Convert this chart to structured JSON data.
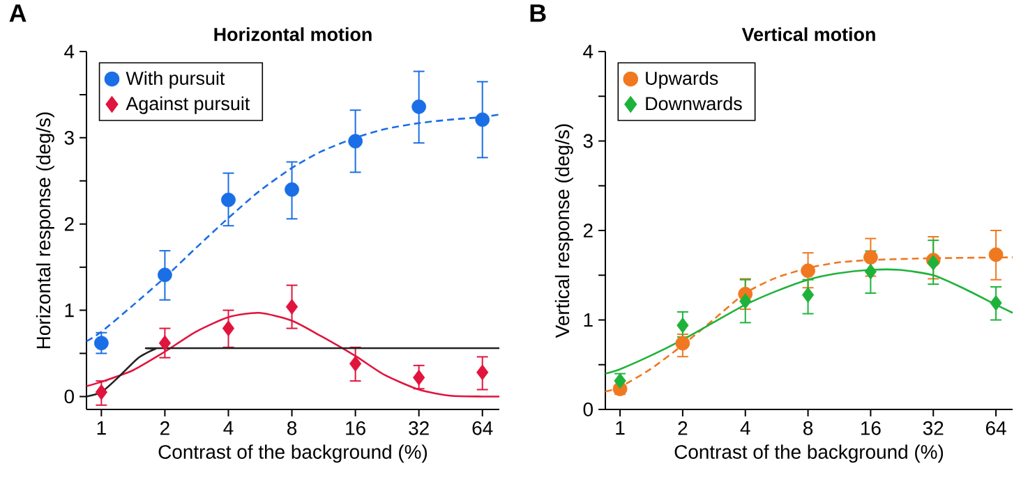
{
  "chart_data": [
    {
      "type": "scatter",
      "title": "Horizontal motion",
      "xlabel": "Contrast of the background (%)",
      "ylabel": "Horizontal response (deg/s)",
      "annotations": [
        "A"
      ],
      "log": "x",
      "xlim": [
        0.85,
        77
      ],
      "xticks": [
        1,
        2,
        4,
        8,
        16,
        32,
        64
      ],
      "ylim": [
        -0.15,
        4
      ],
      "yticks": [
        0,
        {
          "value": 0.5,
          "label": null
        },
        1,
        {
          "value": 1.5,
          "label": null
        },
        2,
        {
          "value": 2.5,
          "label": null
        },
        3,
        {
          "value": 3.5,
          "label": null
        },
        4
      ],
      "grid": false,
      "legend": "top left",
      "series": [
        {
          "name": "With pursuit",
          "type": "scatter",
          "marker": "circle",
          "color": "#1a6ee6",
          "x": [
            1,
            2,
            4,
            8,
            16,
            32,
            64
          ],
          "values": [
            0.62,
            1.41,
            2.28,
            2.4,
            2.96,
            3.36,
            3.21
          ],
          "errors": [
            [
              0.5,
              0.74
            ],
            [
              1.12,
              1.69
            ],
            [
              1.98,
              2.59
            ],
            [
              2.06,
              2.72
            ],
            [
              2.6,
              3.32
            ],
            [
              2.94,
              3.77
            ],
            [
              2.77,
              3.65
            ]
          ]
        },
        {
          "name": "Against pursuit",
          "type": "scatter",
          "marker": "diamond",
          "color": "#e0143c",
          "x": [
            1,
            2,
            4,
            8,
            16,
            32,
            64
          ],
          "values": [
            0.05,
            0.62,
            0.79,
            1.04,
            0.38,
            0.22,
            0.28
          ],
          "errors": [
            [
              -0.1,
              0.18
            ],
            [
              0.45,
              0.79
            ],
            [
              0.57,
              1.0
            ],
            [
              0.79,
              1.29
            ],
            [
              0.18,
              0.57
            ],
            [
              0.09,
              0.36
            ],
            [
              0.08,
              0.46
            ]
          ]
        },
        {
          "type": "line",
          "line_style": "dashed",
          "marker": "none",
          "color": "#1a6ee6",
          "x": [
            0.85,
            1,
            1.4,
            2,
            2.8,
            4,
            5.6,
            8,
            11,
            16,
            22,
            32,
            45,
            64,
            77
          ],
          "values": [
            0.64,
            0.75,
            1.05,
            1.38,
            1.72,
            2.07,
            2.38,
            2.65,
            2.84,
            3.0,
            3.1,
            3.17,
            3.21,
            3.24,
            3.27
          ]
        },
        {
          "type": "line",
          "line_style": "solid",
          "marker": "none",
          "color": "#e0143c",
          "x": [
            0.85,
            1,
            1.4,
            2,
            2.8,
            4,
            5.6,
            8,
            11,
            16,
            22,
            32,
            45,
            64,
            77
          ],
          "values": [
            0.12,
            0.17,
            0.3,
            0.52,
            0.75,
            0.92,
            0.97,
            0.88,
            0.7,
            0.47,
            0.25,
            0.08,
            0.01,
            0,
            0
          ]
        },
        {
          "type": "line",
          "line_style": "solid",
          "marker": "none",
          "color": "#222222",
          "x": [
            0.85,
            1,
            1.2,
            1.5,
            1.8,
            2,
            77
          ],
          "values": [
            0,
            0.05,
            0.22,
            0.45,
            0.55,
            0.56,
            0.56
          ]
        }
      ]
    },
    {
      "type": "scatter",
      "title": "Vertical motion",
      "xlabel": "Contrast of the background (%)",
      "ylabel": "Vertical response (deg/s)",
      "annotations": [
        "B"
      ],
      "log": "x",
      "xlim": [
        0.85,
        77
      ],
      "xticks": [
        1,
        2,
        4,
        8,
        16,
        32,
        64
      ],
      "ylim": [
        0,
        4
      ],
      "yticks": [
        0,
        {
          "value": 0.5,
          "label": null
        },
        1,
        {
          "value": 1.5,
          "label": null
        },
        2,
        {
          "value": 2.5,
          "label": null
        },
        3,
        {
          "value": 3.5,
          "label": null
        },
        4
      ],
      "grid": false,
      "legend": "top left",
      "series": [
        {
          "name": "Upwards",
          "type": "scatter",
          "marker": "circle",
          "color": "#f07820",
          "x": [
            1,
            2,
            4,
            8,
            16,
            32,
            64
          ],
          "values": [
            0.23,
            0.74,
            1.29,
            1.55,
            1.7,
            1.67,
            1.73
          ],
          "errors": [
            [
              0.17,
              0.32
            ],
            [
              0.59,
              0.84
            ],
            [
              1.12,
              1.46
            ],
            [
              1.36,
              1.75
            ],
            [
              1.49,
              1.91
            ],
            [
              1.46,
              1.93
            ],
            [
              1.45,
              2.0
            ]
          ]
        },
        {
          "name": "Downwards",
          "type": "scatter",
          "marker": "diamond",
          "color": "#1db33a",
          "x": [
            1,
            2,
            4,
            8,
            16,
            32,
            64
          ],
          "values": [
            0.32,
            0.94,
            1.21,
            1.28,
            1.54,
            1.64,
            1.19
          ],
          "errors": [
            [
              0.24,
              0.4
            ],
            [
              0.81,
              1.09
            ],
            [
              0.97,
              1.45
            ],
            [
              1.07,
              1.45
            ],
            [
              1.3,
              1.77
            ],
            [
              1.4,
              1.89
            ],
            [
              1.0,
              1.37
            ]
          ]
        },
        {
          "type": "line",
          "line_style": "dashed",
          "marker": "none",
          "color": "#f07820",
          "x": [
            0.85,
            1,
            1.4,
            2,
            2.8,
            4,
            5.6,
            8,
            11,
            16,
            32,
            77
          ],
          "values": [
            0.2,
            0.25,
            0.45,
            0.72,
            1.0,
            1.3,
            1.47,
            1.58,
            1.64,
            1.67,
            1.69,
            1.7
          ]
        },
        {
          "type": "line",
          "line_style": "solid",
          "marker": "none",
          "color": "#1db33a",
          "x": [
            0.85,
            1,
            1.4,
            2,
            2.8,
            4,
            5.6,
            8,
            11,
            16,
            22,
            32,
            45,
            64,
            77
          ],
          "values": [
            0.4,
            0.45,
            0.6,
            0.78,
            0.97,
            1.17,
            1.32,
            1.45,
            1.52,
            1.56,
            1.56,
            1.5,
            1.35,
            1.17,
            1.08
          ]
        }
      ]
    }
  ]
}
